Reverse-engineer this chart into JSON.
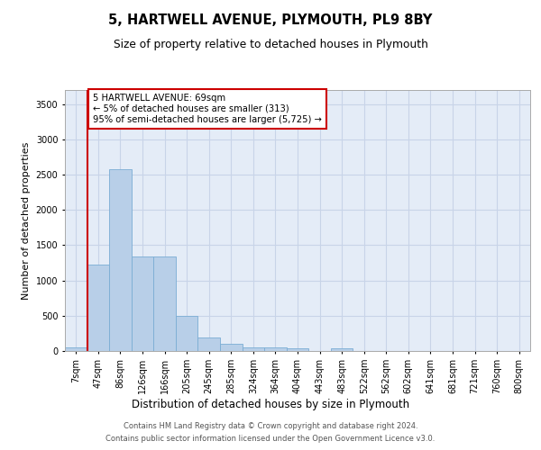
{
  "title_line1": "5, HARTWELL AVENUE, PLYMOUTH, PL9 8BY",
  "title_line2": "Size of property relative to detached houses in Plymouth",
  "xlabel": "Distribution of detached houses by size in Plymouth",
  "ylabel": "Number of detached properties",
  "categories": [
    "7sqm",
    "47sqm",
    "86sqm",
    "126sqm",
    "166sqm",
    "205sqm",
    "245sqm",
    "285sqm",
    "324sqm",
    "364sqm",
    "404sqm",
    "443sqm",
    "483sqm",
    "522sqm",
    "562sqm",
    "602sqm",
    "641sqm",
    "681sqm",
    "721sqm",
    "760sqm",
    "800sqm"
  ],
  "bar_values": [
    50,
    1220,
    2580,
    1340,
    1340,
    500,
    190,
    100,
    50,
    50,
    40,
    0,
    40,
    0,
    0,
    0,
    0,
    0,
    0,
    0,
    0
  ],
  "bar_color": "#b8cfe8",
  "bar_edge_color": "#7aadd4",
  "bar_width": 1.0,
  "vline_x": 0.5,
  "vline_color": "#cc0000",
  "annotation_text": "5 HARTWELL AVENUE: 69sqm\n← 5% of detached houses are smaller (313)\n95% of semi-detached houses are larger (5,725) →",
  "ylim": [
    0,
    3700
  ],
  "yticks": [
    0,
    500,
    1000,
    1500,
    2000,
    2500,
    3000,
    3500
  ],
  "grid_color": "#c8d4e8",
  "background_color": "#e4ecf7",
  "footer_line1": "Contains HM Land Registry data © Crown copyright and database right 2024.",
  "footer_line2": "Contains public sector information licensed under the Open Government Licence v3.0."
}
